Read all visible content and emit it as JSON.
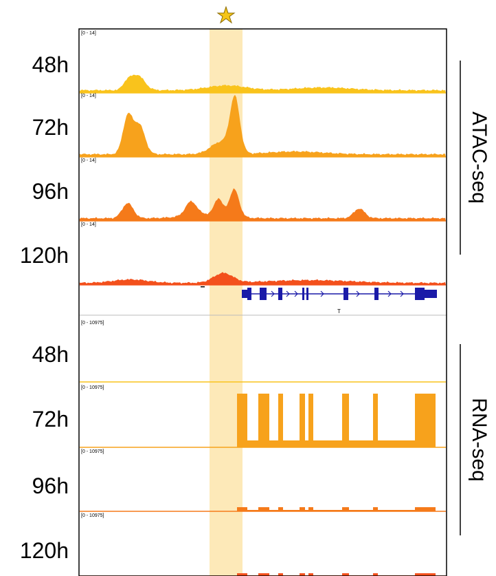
{
  "highlight": {
    "marker": "star-icon",
    "marker_color": "#f5c518",
    "band_color": "#fde9b8"
  },
  "atac": {
    "group_label": "ATAC-seq",
    "range_label": "[0 - 14]",
    "tracks": [
      {
        "time": "48h",
        "color": "#f9c31c"
      },
      {
        "time": "72h",
        "color": "#f7a21c"
      },
      {
        "time": "96h",
        "color": "#f57a1a"
      },
      {
        "time": "120h",
        "color": "#f3501c"
      }
    ]
  },
  "gene": {
    "name": "T",
    "color": "#1a1aa8"
  },
  "rna": {
    "group_label": "RNA-seq",
    "range_label": "[0 - 10975]",
    "tracks": [
      {
        "time": "48h",
        "color": "#f9c31c"
      },
      {
        "time": "72h",
        "color": "#f7a21c"
      },
      {
        "time": "96h",
        "color": "#f57a1a"
      },
      {
        "time": "120h",
        "color": "#f3501c"
      }
    ]
  }
}
